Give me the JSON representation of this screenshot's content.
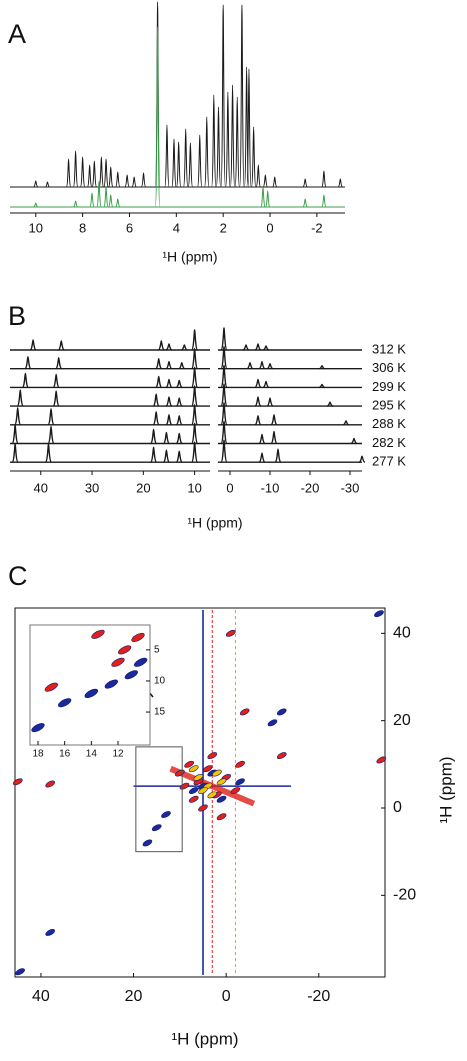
{
  "chart_data": [
    {
      "type": "spectrum",
      "label": "A",
      "xlabel": "¹H (ppm)",
      "xlim": [
        11.1,
        -3.2
      ],
      "xticks": [
        10,
        8,
        6,
        4,
        2,
        0,
        -2
      ],
      "series": [
        {
          "color": "#1a1a1a",
          "x": [
            10.0,
            9.5,
            8.6,
            8.3,
            8.0,
            7.7,
            7.5,
            7.2,
            7.0,
            6.8,
            6.5,
            6.1,
            5.8,
            5.4,
            4.8,
            4.4,
            4.1,
            3.9,
            3.6,
            3.4,
            3.0,
            2.7,
            2.4,
            2.2,
            2.0,
            1.8,
            1.6,
            1.4,
            1.2,
            1.0,
            0.9,
            0.7,
            0.5,
            0.2,
            -0.2,
            -1.5,
            -2.3,
            -3.0
          ],
          "values": [
            6,
            5,
            28,
            36,
            30,
            22,
            26,
            30,
            28,
            20,
            15,
            12,
            10,
            14,
            185,
            62,
            48,
            45,
            58,
            44,
            52,
            70,
            92,
            80,
            182,
            95,
            102,
            90,
            182,
            120,
            118,
            60,
            22,
            12,
            10,
            8,
            16,
            8
          ]
        },
        {
          "color": "#3aa04a",
          "x": [
            10.0,
            8.3,
            7.6,
            7.3,
            7.0,
            6.8,
            6.5,
            4.8,
            0.3,
            0.1,
            -1.5,
            -2.3
          ],
          "values": [
            4,
            6,
            14,
            26,
            20,
            12,
            8,
            180,
            20,
            16,
            8,
            12
          ]
        }
      ]
    },
    {
      "type": "stack",
      "label": "B",
      "xlabel": "¹H (ppm)",
      "xlims": [
        [
          46,
          7
        ],
        [
          3,
          -33
        ]
      ],
      "xticks": [
        [
          40,
          30,
          20,
          10
        ],
        [
          0,
          -10,
          -20,
          -30
        ]
      ],
      "series": [
        {
          "name": "312 K",
          "color": "#1a1a1a",
          "x": [
            41.5,
            36,
            16.5,
            15,
            12,
            10,
            1.5,
            -4,
            -7,
            -9
          ],
          "values": [
            10,
            9,
            9,
            6,
            5,
            20,
            22,
            5,
            6,
            4
          ]
        },
        {
          "name": "306 K",
          "color": "#1a1a1a",
          "x": [
            42.5,
            36.5,
            17,
            15,
            12.5,
            10,
            1.5,
            -5,
            -8,
            -10,
            -23
          ],
          "values": [
            12,
            11,
            10,
            7,
            6,
            20,
            22,
            6,
            7,
            5,
            3
          ]
        },
        {
          "name": "299 K",
          "color": "#1a1a1a",
          "x": [
            43,
            37,
            17,
            15,
            13,
            10,
            1.5,
            -7,
            -9,
            -23
          ],
          "values": [
            14,
            13,
            11,
            8,
            7,
            20,
            22,
            8,
            6,
            3
          ]
        },
        {
          "name": "295 K",
          "color": "#1a1a1a",
          "x": [
            44,
            37,
            17.5,
            15,
            13,
            10,
            1.5,
            -7,
            -10,
            -25
          ],
          "values": [
            16,
            15,
            12,
            9,
            8,
            20,
            22,
            9,
            8,
            4
          ]
        },
        {
          "name": "288 K",
          "color": "#1a1a1a",
          "x": [
            44.5,
            38,
            17.5,
            15,
            13,
            10,
            1.5,
            -7,
            -11,
            -29
          ],
          "values": [
            17,
            16,
            13,
            10,
            9,
            20,
            22,
            9,
            10,
            4
          ]
        },
        {
          "name": "282 K",
          "color": "#1a1a1a",
          "x": [
            45,
            38,
            18,
            15.5,
            13,
            10,
            1.5,
            -8,
            -11,
            -31
          ],
          "values": [
            18,
            17,
            14,
            11,
            10,
            20,
            22,
            9,
            12,
            5
          ]
        },
        {
          "name": "277 K",
          "color": "#1a1a1a",
          "x": [
            45,
            38.5,
            18,
            15.5,
            13,
            10,
            1.5,
            -8,
            -12,
            -33
          ],
          "values": [
            18,
            18,
            15,
            12,
            11,
            20,
            22,
            9,
            13,
            6
          ]
        }
      ]
    },
    {
      "type": "contour",
      "label": "C",
      "xlabel": "¹H (ppm)",
      "ylabel": "¹H (ppm)",
      "xlim": [
        45.6,
        -34.3
      ],
      "ylim": [
        45.8,
        -38.7
      ],
      "xticks": [
        40,
        20,
        0,
        -20
      ],
      "yticks": [
        40,
        20,
        0,
        -20
      ],
      "series": [
        {
          "color": "#e0201a",
          "x": [
            38,
            45,
            -4,
            -12,
            -1,
            -33.5,
            10,
            8,
            6,
            4,
            2,
            0,
            -2,
            7,
            3,
            -3,
            5,
            9,
            1
          ],
          "values": [
            5.5,
            6,
            22,
            12,
            40,
            11,
            8,
            10,
            6,
            9,
            3,
            7,
            4,
            2,
            12,
            10,
            0,
            5,
            -2
          ]
        },
        {
          "color": "#1a2a9c",
          "x": [
            44.5,
            38,
            17,
            15,
            13,
            -12,
            -10,
            -33,
            5,
            3,
            1,
            7,
            -3
          ],
          "values": [
            -37.5,
            -28.5,
            -8,
            -4.5,
            -1.5,
            22,
            19.5,
            44.5,
            5,
            8,
            2,
            4,
            6
          ]
        },
        {
          "color": "#f5c400",
          "x": [
            6,
            4,
            2,
            3,
            5,
            1,
            7
          ],
          "values": [
            7,
            5,
            8,
            3,
            4,
            6,
            9
          ]
        }
      ]
    },
    {
      "type": "contour",
      "xlim": [
        18.6,
        9.6
      ],
      "ylim": [
        1,
        20.3
      ],
      "xticks": [
        18,
        16,
        14,
        12
      ],
      "yticks": [
        5,
        10,
        15
      ],
      "series": [
        {
          "color": "#e0201a",
          "x": [
            14,
            17,
            12,
            13.5,
            10.5,
            11.5
          ],
          "values": [
            12,
            11,
            7,
            2.5,
            3,
            5
          ]
        },
        {
          "color": "#1a2a9c",
          "x": [
            18,
            16,
            14,
            12.5,
            11,
            10.3
          ],
          "values": [
            17.5,
            13.5,
            12,
            10.5,
            9,
            7
          ]
        }
      ]
    }
  ]
}
